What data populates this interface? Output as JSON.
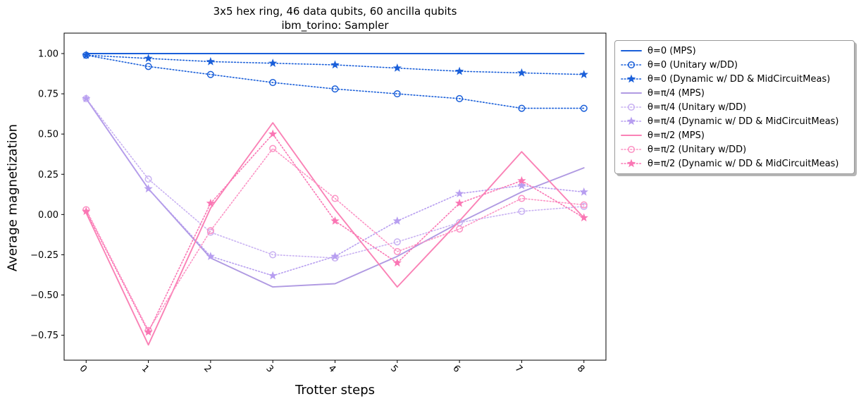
{
  "figure": {
    "title_line1": "3x5 hex ring, 46 data qubits, 60 ancilla qubits",
    "title_line2": "ibm_torino: Sampler"
  },
  "chart_data": {
    "type": "line",
    "title": "3x5 hex ring, 46 data qubits, 60 ancilla qubits",
    "subtitle": "ibm_torino: Sampler",
    "xlabel": "Trotter steps",
    "ylabel": "Average magnetization",
    "x": [
      0,
      1,
      2,
      3,
      4,
      5,
      6,
      7,
      8
    ],
    "xtick_labels": [
      "0",
      "1",
      "2",
      "3",
      "4",
      "5",
      "6",
      "7",
      "8"
    ],
    "ytick_values": [
      1.0,
      0.75,
      0.5,
      0.25,
      0.0,
      -0.25,
      -0.5,
      -0.75
    ],
    "ytick_labels": [
      "1.00",
      "0.75",
      "0.50",
      "0.25",
      "0.00",
      "−0.25",
      "−0.50",
      "−0.75"
    ],
    "xlim": [
      -0.354,
      8.354
    ],
    "ylim": [
      -0.905,
      1.127
    ],
    "grid": false,
    "legend_position": "outside right",
    "series": [
      {
        "name": "θ=0 (MPS)",
        "color": "#1a5fd9",
        "line": "solid",
        "marker": "none",
        "values": [
          1.0,
          1.0,
          1.0,
          1.0,
          1.0,
          1.0,
          1.0,
          1.0,
          1.0
        ]
      },
      {
        "name": "θ=0 (Unitary w/DD)",
        "color": "#1a5fd9",
        "line": "dotted",
        "marker": "circle",
        "values": [
          0.99,
          0.92,
          0.87,
          0.82,
          0.78,
          0.75,
          0.72,
          0.66,
          0.66
        ]
      },
      {
        "name": "θ=0 (Dynamic w/ DD & MidCircuitMeas)",
        "color": "#1a5fd9",
        "line": "dotted",
        "marker": "star",
        "values": [
          0.99,
          0.97,
          0.95,
          0.94,
          0.93,
          0.91,
          0.89,
          0.88,
          0.87
        ]
      },
      {
        "name": "θ=π/4 (MPS)",
        "color": "#b09ae2",
        "line": "solid",
        "marker": "none",
        "values": [
          0.72,
          0.16,
          -0.27,
          -0.45,
          -0.43,
          -0.26,
          -0.05,
          0.14,
          0.29
        ]
      },
      {
        "name": "θ=π/4 (Unitary w/DD)",
        "color": "#c9b2f2",
        "line": "dotted",
        "marker": "circle",
        "values": [
          0.72,
          0.22,
          -0.11,
          -0.25,
          -0.27,
          -0.17,
          -0.05,
          0.02,
          0.05
        ]
      },
      {
        "name": "θ=π/4 (Dynamic w/ DD & MidCircuitMeas)",
        "color": "#b79ef0",
        "line": "dotted",
        "marker": "star",
        "values": [
          0.72,
          0.16,
          -0.26,
          -0.38,
          -0.26,
          -0.04,
          0.13,
          0.18,
          0.14
        ]
      },
      {
        "name": "θ=π/2 (MPS)",
        "color": "#fa82b6",
        "line": "solid",
        "marker": "none",
        "values": [
          0.01,
          -0.81,
          0.04,
          0.57,
          0.03,
          -0.45,
          -0.04,
          0.39,
          -0.02
        ]
      },
      {
        "name": "θ=π/2 (Unitary w/DD)",
        "color": "#fc93c4",
        "line": "dotted",
        "marker": "circle",
        "values": [
          0.03,
          -0.72,
          -0.1,
          0.41,
          0.1,
          -0.23,
          -0.09,
          0.1,
          0.06
        ]
      },
      {
        "name": "θ=π/2 (Dynamic w/ DD & MidCircuitMeas)",
        "color": "#fa76b4",
        "line": "dotted",
        "marker": "star",
        "values": [
          0.02,
          -0.73,
          0.07,
          0.5,
          -0.04,
          -0.3,
          0.07,
          0.21,
          -0.02
        ]
      }
    ]
  }
}
